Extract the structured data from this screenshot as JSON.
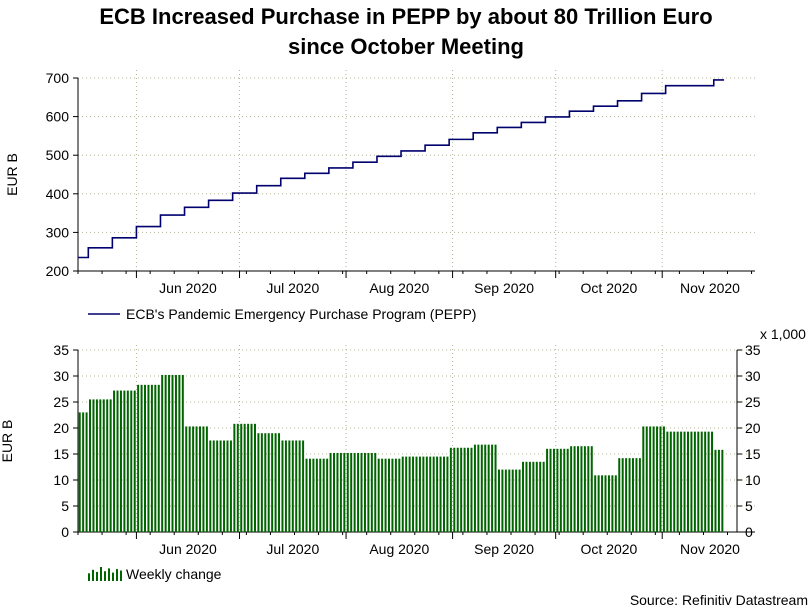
{
  "title_line1": "ECB Increased Purchase in PEPP by about 80 Trillion Euro",
  "title_line2": "since October Meeting",
  "source": "Source: Refinitiv Datastream",
  "colors": {
    "line": "#00006e",
    "bars": "#006400",
    "grid": "#b4b496",
    "axis": "#000000"
  },
  "chart_data": [
    {
      "type": "line",
      "ylabel": "EUR B",
      "ylim": [
        200,
        700
      ],
      "yticks": [
        200,
        300,
        400,
        500,
        600,
        700
      ],
      "x_ticks": [
        "Jun 2020",
        "Jul 2020",
        "Aug 2020",
        "Sep 2020",
        "Oct 2020",
        "Nov 2020"
      ],
      "grid": true,
      "legend_position": "bottom-left",
      "series": [
        {
          "name": "ECB's Pandemic Emergency Purchase Program (PEPP)",
          "x": [
            "2020-05-15",
            "2020-05-18",
            "2020-05-25",
            "2020-06-01",
            "2020-06-08",
            "2020-06-15",
            "2020-06-22",
            "2020-06-29",
            "2020-07-06",
            "2020-07-13",
            "2020-07-20",
            "2020-07-27",
            "2020-08-03",
            "2020-08-10",
            "2020-08-17",
            "2020-08-24",
            "2020-08-31",
            "2020-09-07",
            "2020-09-14",
            "2020-09-21",
            "2020-09-28",
            "2020-10-05",
            "2020-10-12",
            "2020-10-19",
            "2020-10-26",
            "2020-11-02",
            "2020-11-09",
            "2020-11-16",
            "2020-11-19"
          ],
          "values": [
            235,
            260,
            286,
            315,
            345,
            365,
            383,
            402,
            421,
            440,
            453,
            467,
            482,
            497,
            511,
            526,
            541,
            558,
            572,
            585,
            599,
            614,
            627,
            641,
            660,
            680,
            680,
            695,
            695
          ]
        }
      ]
    },
    {
      "type": "bar",
      "ylabel": "EUR B",
      "ylim": [
        0,
        35
      ],
      "yticks": [
        0,
        5,
        10,
        15,
        20,
        25,
        30,
        35
      ],
      "right_axis_note": "x 1,000",
      "x_ticks": [
        "Jun 2020",
        "Jul 2020",
        "Aug 2020",
        "Sep 2020",
        "Oct 2020",
        "Nov 2020"
      ],
      "grid": true,
      "legend_position": "bottom-left",
      "series": [
        {
          "name": "Weekly change",
          "weeks": [
            {
              "start": "2020-05-15",
              "end": "2020-05-18",
              "value": 23
            },
            {
              "start": "2020-05-18",
              "end": "2020-05-25",
              "value": 25.5
            },
            {
              "start": "2020-05-25",
              "end": "2020-06-01",
              "value": 27.2
            },
            {
              "start": "2020-06-01",
              "end": "2020-06-08",
              "value": 28.3
            },
            {
              "start": "2020-06-08",
              "end": "2020-06-15",
              "value": 30.2
            },
            {
              "start": "2020-06-15",
              "end": "2020-06-22",
              "value": 20.3
            },
            {
              "start": "2020-06-22",
              "end": "2020-06-29",
              "value": 17.6
            },
            {
              "start": "2020-06-29",
              "end": "2020-07-06",
              "value": 20.8
            },
            {
              "start": "2020-07-06",
              "end": "2020-07-13",
              "value": 19
            },
            {
              "start": "2020-07-13",
              "end": "2020-07-20",
              "value": 17.6
            },
            {
              "start": "2020-07-20",
              "end": "2020-07-27",
              "value": 14.1
            },
            {
              "start": "2020-07-27",
              "end": "2020-08-03",
              "value": 15.2
            },
            {
              "start": "2020-08-03",
              "end": "2020-08-10",
              "value": 15.2
            },
            {
              "start": "2020-08-10",
              "end": "2020-08-17",
              "value": 14.1
            },
            {
              "start": "2020-08-17",
              "end": "2020-08-24",
              "value": 14.5
            },
            {
              "start": "2020-08-24",
              "end": "2020-08-31",
              "value": 14.5
            },
            {
              "start": "2020-08-31",
              "end": "2020-09-07",
              "value": 16.2
            },
            {
              "start": "2020-09-07",
              "end": "2020-09-14",
              "value": 16.8
            },
            {
              "start": "2020-09-14",
              "end": "2020-09-21",
              "value": 12
            },
            {
              "start": "2020-09-21",
              "end": "2020-09-28",
              "value": 13.5
            },
            {
              "start": "2020-09-28",
              "end": "2020-10-05",
              "value": 16
            },
            {
              "start": "2020-10-05",
              "end": "2020-10-12",
              "value": 16.5
            },
            {
              "start": "2020-10-12",
              "end": "2020-10-19",
              "value": 10.9
            },
            {
              "start": "2020-10-19",
              "end": "2020-10-26",
              "value": 14.2
            },
            {
              "start": "2020-10-26",
              "end": "2020-11-02",
              "value": 20.3
            },
            {
              "start": "2020-11-02",
              "end": "2020-11-09",
              "value": 19.3
            },
            {
              "start": "2020-11-09",
              "end": "2020-11-16",
              "value": 19.3
            },
            {
              "start": "2020-11-16",
              "end": "2020-11-19",
              "value": 15.8
            }
          ]
        }
      ]
    }
  ]
}
